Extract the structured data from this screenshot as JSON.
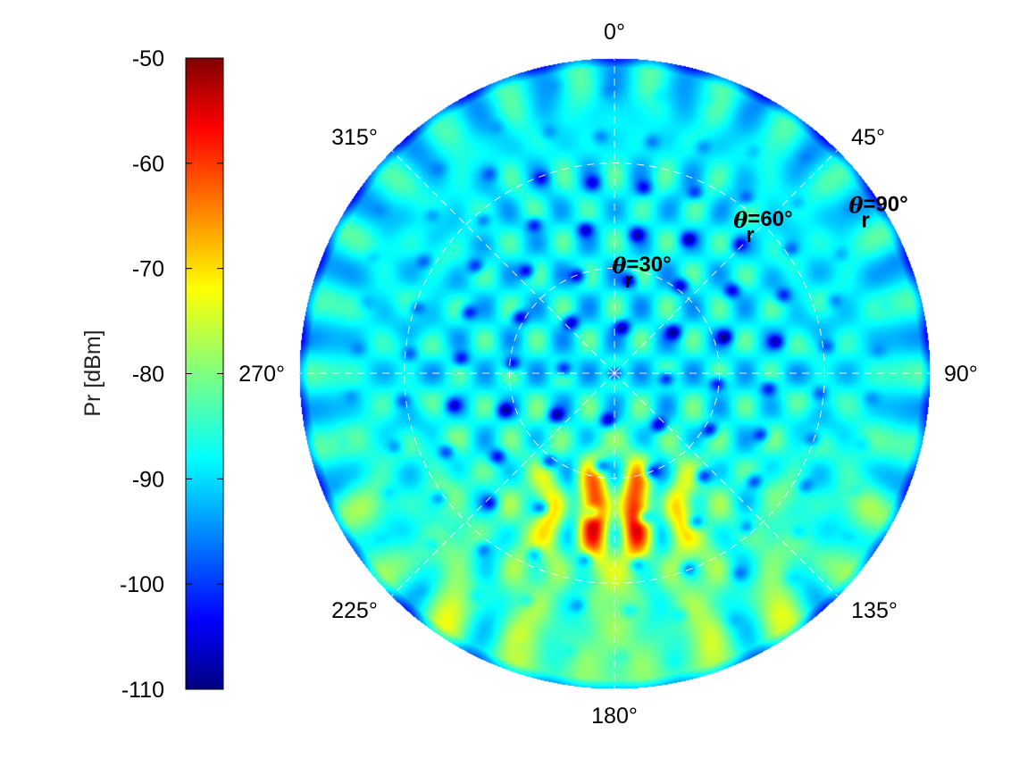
{
  "chart_data": {
    "type": "heatmap",
    "projection": "polar",
    "colormap": "jet",
    "colorbar": {
      "label": "Pr [dBm]",
      "range": [
        -110,
        -50
      ],
      "ticks": [
        "-50",
        "-60",
        "-70",
        "-80",
        "-90",
        "-100",
        "-110"
      ],
      "tick_values": [
        -50,
        -60,
        -70,
        -80,
        -90,
        -100,
        -110
      ],
      "placement": "left"
    },
    "angular_axis": {
      "zero_direction": "top",
      "direction": "clockwise",
      "tick_labels": [
        "0°",
        "45°",
        "90°",
        "135°",
        "180°",
        "225°",
        "270°",
        "315°"
      ],
      "tick_angles": [
        0,
        45,
        90,
        135,
        180,
        225,
        270,
        315
      ]
    },
    "radial_axis": {
      "variable": "θr",
      "circles_deg": [
        30,
        60,
        90
      ],
      "range": [
        0,
        90
      ]
    },
    "annotations": [
      {
        "theta_prefix": "θ",
        "subscript": "r",
        "value": "=30°",
        "at_theta_r": 30
      },
      {
        "theta_prefix": "θ",
        "subscript": "r",
        "value": "=60°",
        "at_theta_r": 60
      },
      {
        "theta_prefix": "θ",
        "subscript": "r",
        "value": "=90°",
        "at_theta_r": 90
      }
    ],
    "field_summary": {
      "background_level_dbm": -88,
      "main_lobe": {
        "azimuth_deg": 180,
        "theta_r_deg": 40,
        "peak_dbm": -58,
        "split_into_two_lobes": true
      },
      "secondary_level_dbm": -76,
      "minimum_level_dbm": -110
    },
    "grid": true,
    "grid_color": "#ffffff",
    "grid_style": "dashed"
  }
}
